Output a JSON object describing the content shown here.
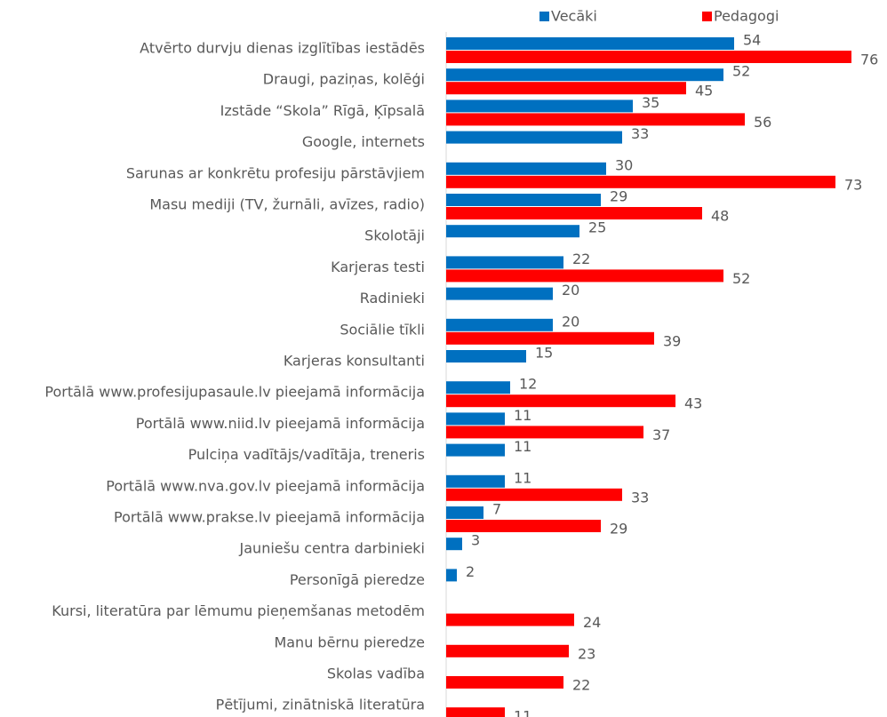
{
  "chart_data": {
    "type": "bar",
    "orientation": "horizontal",
    "categories": [
      "Atvērto durvju dienas izglītības iestādēs",
      "Draugi, paziņas, kolēģi",
      "Izstāde “Skola” Rīgā, Ķīpsalā",
      "Google, internets",
      "Sarunas ar konkrētu profesiju pārstāvjiem",
      "Masu mediji (TV, žurnāli, avīzes, radio)",
      "Skolotāji",
      "Karjeras testi",
      "Radinieki",
      "Sociālie tīkli",
      "Karjeras konsultanti",
      "Portālā www.profesijupasaule.lv pieejamā informācija",
      "Portālā www.niid.lv pieejamā informācija",
      "Pulciņa vadītājs/vadītāja, treneris",
      "Portālā www.nva.gov.lv pieejamā informācija",
      "Portālā www.prakse.lv pieejamā informācija",
      "Jauniešu centra darbinieki",
      "Personīgā pieredze",
      "Kursi, literatūra par lēmumu pieņemšanas metodēm",
      "Manu bērnu pieredze",
      "Skolas vadība",
      "Pētījumi, zinātniskā literatūra"
    ],
    "series": [
      {
        "name": "Vecāki",
        "color": "#0070c0",
        "values": [
          54,
          52,
          35,
          33,
          30,
          29,
          25,
          22,
          20,
          20,
          15,
          12,
          11,
          11,
          11,
          7,
          3,
          2,
          null,
          null,
          null,
          null
        ]
      },
      {
        "name": "Pedagogi",
        "color": "#ff0000",
        "values": [
          76,
          45,
          56,
          null,
          73,
          48,
          null,
          52,
          null,
          39,
          null,
          43,
          37,
          null,
          33,
          29,
          null,
          null,
          24,
          23,
          22,
          11
        ]
      }
    ],
    "legend": "top"
  }
}
